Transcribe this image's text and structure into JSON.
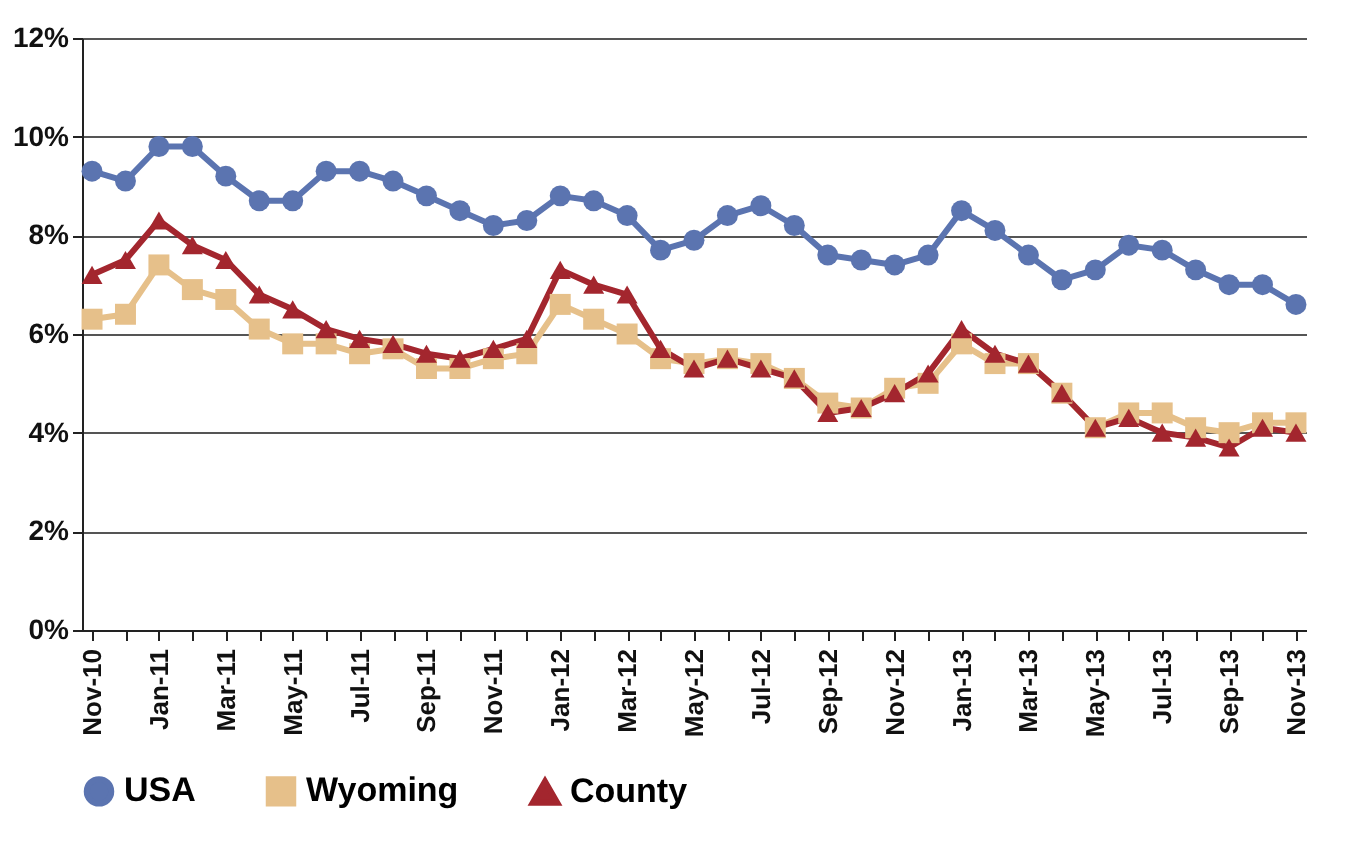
{
  "chart_data": {
    "type": "line",
    "categories": [
      "Nov-10",
      null,
      "Jan-11",
      null,
      "Mar-11",
      null,
      "May-11",
      null,
      "Jul-11",
      null,
      "Sep-11",
      null,
      "Nov-11",
      null,
      "Jan-12",
      null,
      "Mar-12",
      null,
      "May-12",
      null,
      "Jul-12",
      null,
      "Sep-12",
      null,
      "Nov-12",
      null,
      "Jan-13",
      null,
      "Mar-13",
      null,
      "May-13",
      null,
      "Jul-13",
      null,
      "Sep-13",
      null,
      "Nov-13"
    ],
    "series": [
      {
        "name": "USA",
        "color": "#5b74b0",
        "marker": "circle",
        "values": [
          9.3,
          9.1,
          9.8,
          9.8,
          9.2,
          8.7,
          8.7,
          9.3,
          9.3,
          9.1,
          8.8,
          8.5,
          8.2,
          8.3,
          8.8,
          8.7,
          8.4,
          7.7,
          7.9,
          8.4,
          8.6,
          8.2,
          7.6,
          7.5,
          7.4,
          7.6,
          8.5,
          8.1,
          7.6,
          7.1,
          7.3,
          7.8,
          7.7,
          7.3,
          7.0,
          7.0,
          6.6
        ]
      },
      {
        "name": "Wyoming",
        "color": "#e6c08a",
        "marker": "square",
        "values": [
          6.3,
          6.4,
          7.4,
          6.9,
          6.7,
          6.1,
          5.8,
          5.8,
          5.6,
          5.7,
          5.3,
          5.3,
          5.5,
          5.6,
          6.6,
          6.3,
          6.0,
          5.5,
          5.4,
          5.5,
          5.4,
          5.1,
          4.6,
          4.5,
          4.9,
          5.0,
          5.8,
          5.4,
          5.4,
          4.8,
          4.1,
          4.4,
          4.4,
          4.1,
          4.0,
          4.2,
          4.2
        ]
      },
      {
        "name": "County",
        "color": "#a3262e",
        "marker": "triangle",
        "values": [
          7.2,
          7.5,
          8.3,
          7.8,
          7.5,
          6.8,
          6.5,
          6.1,
          5.9,
          5.8,
          5.6,
          5.5,
          5.7,
          5.9,
          7.3,
          7.0,
          6.8,
          5.7,
          5.3,
          5.5,
          5.3,
          5.1,
          4.4,
          4.5,
          4.8,
          5.2,
          6.1,
          5.6,
          5.4,
          4.8,
          4.1,
          4.3,
          4.0,
          3.9,
          3.7,
          4.1,
          4.0
        ]
      }
    ],
    "ylim": [
      0,
      12
    ],
    "yticks": [
      {
        "value": 0,
        "label": "0%"
      },
      {
        "value": 2,
        "label": "2%"
      },
      {
        "value": 4,
        "label": "4%"
      },
      {
        "value": 6,
        "label": "6%"
      },
      {
        "value": 8,
        "label": "8%"
      },
      {
        "value": 10,
        "label": "10%"
      },
      {
        "value": 12,
        "label": "12%"
      }
    ],
    "grid": "y",
    "legend": "bottom",
    "line_style": "solid"
  }
}
